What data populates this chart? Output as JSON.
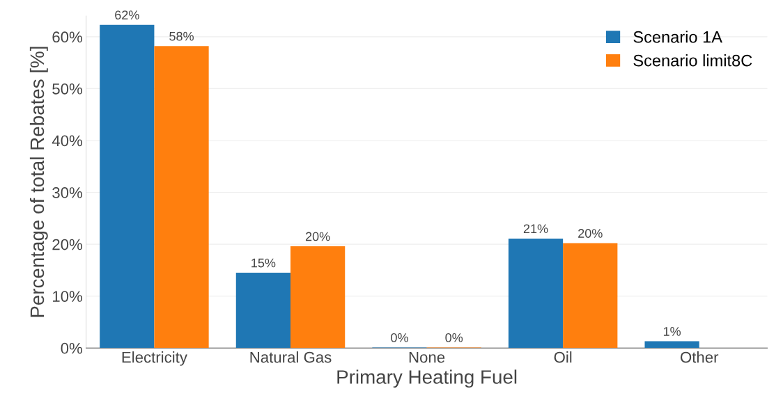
{
  "chart_data": {
    "type": "bar",
    "xlabel": "Primary Heating Fuel",
    "ylabel": "Percentage of total Rebates [%]",
    "categories": [
      "Electricity",
      "Natural Gas",
      "None",
      "Oil",
      "Other"
    ],
    "series": [
      {
        "name": "Scenario 1A",
        "color": "#1f77b4",
        "values": [
          62.3,
          14.5,
          0.1,
          21.1,
          1.3
        ],
        "value_labels": [
          "62%",
          "15%",
          "0%",
          "21%",
          "1%"
        ]
      },
      {
        "name": "Scenario limit8C",
        "color": "#ff7f0e",
        "values": [
          58.2,
          19.6,
          0.1,
          20.2,
          null
        ],
        "value_labels": [
          "58%",
          "20%",
          "0%",
          "20%",
          null
        ]
      }
    ],
    "ylim": [
      0,
      64
    ],
    "yticks": [
      {
        "value": 0,
        "label": "0%"
      },
      {
        "value": 10,
        "label": "10%"
      },
      {
        "value": 20,
        "label": "20%"
      },
      {
        "value": 30,
        "label": "30%"
      },
      {
        "value": 40,
        "label": "40%"
      },
      {
        "value": 50,
        "label": "50%"
      },
      {
        "value": 60,
        "label": "60%"
      }
    ],
    "grid": "y",
    "legend": "top right"
  }
}
